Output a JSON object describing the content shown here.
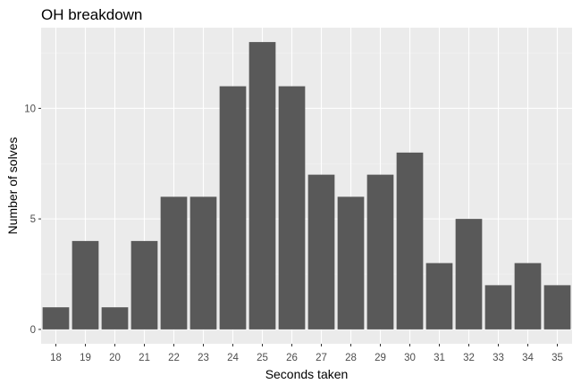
{
  "chart_data": {
    "type": "bar",
    "title": "OH breakdown",
    "xlabel": "Seconds taken",
    "ylabel": "Number of solves",
    "categories": [
      "18",
      "19",
      "20",
      "21",
      "22",
      "23",
      "24",
      "25",
      "26",
      "27",
      "28",
      "29",
      "30",
      "31",
      "32",
      "33",
      "34",
      "35"
    ],
    "values": [
      1,
      4,
      1,
      4,
      6,
      6,
      11,
      13,
      11,
      7,
      6,
      7,
      8,
      3,
      5,
      2,
      3,
      2
    ],
    "yticks": [
      0,
      5,
      10
    ],
    "ylim": [
      -0.65,
      13.65
    ],
    "grid": true,
    "legend": "none",
    "colors": {
      "panel_background": "#ebebeb",
      "grid_major": "#ffffff",
      "grid_minor": "#f4f4f4",
      "bar_fill": "#595959"
    }
  }
}
